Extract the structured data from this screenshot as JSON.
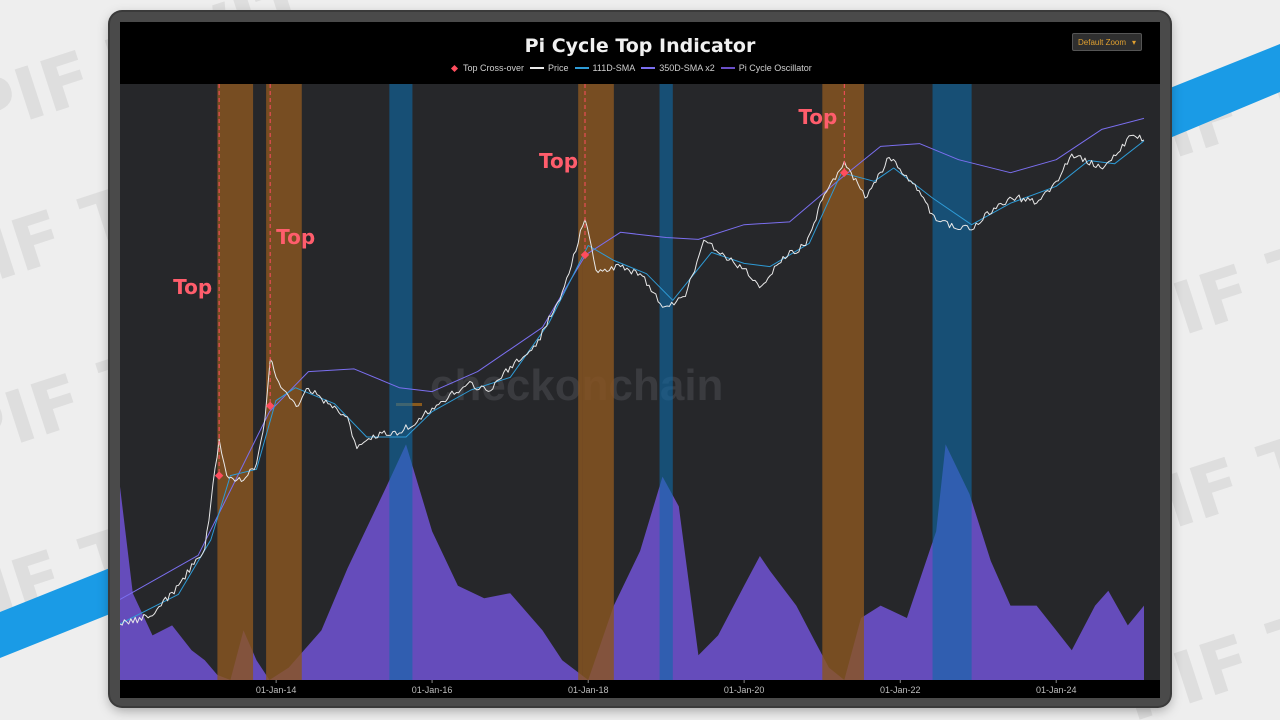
{
  "colors": {
    "accent_blue": "#1a9be6",
    "plot_bg": "#26272a",
    "price": "#e8e8e8",
    "sma111": "#2e9bd6",
    "sma350x2": "#7b6ff0",
    "oscillator": "#6a4fc8",
    "top_band": "#8a5521",
    "bottom_band": "#0d6aa8",
    "crossover": "#ff4d5e",
    "top_label": "#ff5d6c",
    "zoom_text": "#e0a030"
  },
  "watermark": {
    "text": "checkonchain"
  },
  "background_watermark": "PIF TWIT",
  "zoom_button": {
    "label": "Default Zoom",
    "icon": "caret-down-icon"
  },
  "legend": [
    {
      "label": "Top Cross-over",
      "kind": "diamond",
      "color": "#ff4d5e"
    },
    {
      "label": "Price",
      "kind": "line",
      "color": "#e8e8e8"
    },
    {
      "label": "111D-SMA",
      "kind": "line",
      "color": "#2e9bd6"
    },
    {
      "label": "350D-SMA x2",
      "kind": "line",
      "color": "#7b6ff0"
    },
    {
      "label": "Pi Cycle Oscillator",
      "kind": "line",
      "color": "#6a4fc8"
    }
  ],
  "chart_data": {
    "type": "line",
    "title": "Pi Cycle Top Indicator",
    "x_axis": {
      "type": "date",
      "range": [
        "2012-01-01",
        "2025-02-15"
      ],
      "tick_labels": [
        "01-Jan-14",
        "01-Jan-16",
        "01-Jan-18",
        "01-Jan-20",
        "01-Jan-22",
        "01-Jan-24"
      ],
      "ticks": [
        "2014-01-01",
        "2016-01-01",
        "2018-01-01",
        "2020-01-01",
        "2022-01-01",
        "2024-01-01"
      ]
    },
    "y_scale": "log",
    "grid": false,
    "legend_position": "top-center",
    "series": [
      {
        "name": "Price",
        "points": [
          [
            "2012-01-01",
            5.5
          ],
          [
            "2012-06-01",
            6.5
          ],
          [
            "2012-10-01",
            12
          ],
          [
            "2013-02-01",
            25
          ],
          [
            "2013-04-09",
            230
          ],
          [
            "2013-05-15",
            110
          ],
          [
            "2013-08-01",
            100
          ],
          [
            "2013-10-01",
            140
          ],
          [
            "2013-11-10",
            350
          ],
          [
            "2013-12-04",
            1150
          ],
          [
            "2014-01-01",
            800
          ],
          [
            "2014-02-15",
            600
          ],
          [
            "2014-04-15",
            450
          ],
          [
            "2014-06-01",
            640
          ],
          [
            "2014-09-01",
            470
          ],
          [
            "2014-12-01",
            360
          ],
          [
            "2015-01-14",
            190
          ],
          [
            "2015-04-01",
            250
          ],
          [
            "2015-08-01",
            260
          ],
          [
            "2015-11-01",
            350
          ],
          [
            "2016-01-01",
            430
          ],
          [
            "2016-06-15",
            700
          ],
          [
            "2016-10-01",
            610
          ],
          [
            "2017-01-01",
            1000
          ],
          [
            "2017-05-01",
            1500
          ],
          [
            "2017-09-01",
            4500
          ],
          [
            "2017-12-17",
            19500
          ],
          [
            "2018-02-06",
            7000
          ],
          [
            "2018-06-01",
            7500
          ],
          [
            "2018-09-01",
            6500
          ],
          [
            "2018-12-15",
            3300
          ],
          [
            "2019-04-01",
            4100
          ],
          [
            "2019-06-26",
            12800
          ],
          [
            "2019-09-01",
            10000
          ],
          [
            "2020-01-01",
            7200
          ],
          [
            "2020-03-13",
            4900
          ],
          [
            "2020-07-01",
            9200
          ],
          [
            "2020-10-15",
            11500
          ],
          [
            "2021-01-01",
            29000
          ],
          [
            "2021-04-14",
            63000
          ],
          [
            "2021-07-20",
            30000
          ],
          [
            "2021-11-10",
            68000
          ],
          [
            "2022-03-01",
            40000
          ],
          [
            "2022-06-18",
            19000
          ],
          [
            "2022-11-21",
            15800
          ],
          [
            "2023-03-15",
            24500
          ],
          [
            "2023-07-01",
            30500
          ],
          [
            "2023-10-01",
            27000
          ],
          [
            "2024-01-01",
            42000
          ],
          [
            "2024-03-14",
            73000
          ],
          [
            "2024-08-05",
            54000
          ],
          [
            "2024-12-17",
            106000
          ],
          [
            "2025-02-15",
            97000
          ]
        ]
      },
      {
        "name": "111D-SMA",
        "points": [
          [
            "2012-01-01",
            5.5
          ],
          [
            "2012-10-01",
            10
          ],
          [
            "2013-03-01",
            30
          ],
          [
            "2013-06-01",
            110
          ],
          [
            "2013-10-01",
            125
          ],
          [
            "2013-12-31",
            500
          ],
          [
            "2014-04-01",
            650
          ],
          [
            "2014-10-01",
            470
          ],
          [
            "2015-03-01",
            240
          ],
          [
            "2015-09-01",
            240
          ],
          [
            "2016-01-01",
            400
          ],
          [
            "2016-07-01",
            620
          ],
          [
            "2017-01-01",
            800
          ],
          [
            "2017-07-01",
            2400
          ],
          [
            "2018-01-01",
            11500
          ],
          [
            "2018-05-01",
            8500
          ],
          [
            "2018-10-01",
            6500
          ],
          [
            "2019-02-01",
            3800
          ],
          [
            "2019-08-01",
            10000
          ],
          [
            "2020-01-01",
            8000
          ],
          [
            "2020-05-01",
            7500
          ],
          [
            "2020-11-01",
            12000
          ],
          [
            "2021-04-01",
            50000
          ],
          [
            "2021-09-01",
            42000
          ],
          [
            "2021-12-01",
            55000
          ],
          [
            "2022-06-01",
            30000
          ],
          [
            "2022-12-01",
            17500
          ],
          [
            "2023-06-01",
            27000
          ],
          [
            "2024-01-01",
            38000
          ],
          [
            "2024-06-01",
            64000
          ],
          [
            "2024-10-01",
            60000
          ],
          [
            "2025-02-15",
            95000
          ]
        ]
      },
      {
        "name": "350D-SMA x2",
        "points": [
          [
            "2012-01-01",
            9
          ],
          [
            "2013-01-01",
            22
          ],
          [
            "2013-12-01",
            400
          ],
          [
            "2014-06-01",
            900
          ],
          [
            "2015-01-01",
            950
          ],
          [
            "2015-08-01",
            650
          ],
          [
            "2016-01-01",
            600
          ],
          [
            "2016-08-01",
            900
          ],
          [
            "2017-06-01",
            2200
          ],
          [
            "2017-12-20",
            9500
          ],
          [
            "2018-06-01",
            15000
          ],
          [
            "2019-01-01",
            13500
          ],
          [
            "2019-06-01",
            13000
          ],
          [
            "2020-01-01",
            17500
          ],
          [
            "2020-08-01",
            18500
          ],
          [
            "2021-04-01",
            45000
          ],
          [
            "2021-10-01",
            85000
          ],
          [
            "2022-04-01",
            90000
          ],
          [
            "2022-10-01",
            65000
          ],
          [
            "2023-06-01",
            50000
          ],
          [
            "2024-01-01",
            65000
          ],
          [
            "2024-08-01",
            120000
          ],
          [
            "2025-02-15",
            150000
          ]
        ]
      },
      {
        "name": "Pi Cycle Oscillator",
        "scale": "0 (base) to 1 (peak of lower panel)",
        "points": [
          [
            "2012-01-01",
            0.78
          ],
          [
            "2012-03-01",
            0.35
          ],
          [
            "2012-06-01",
            0.18
          ],
          [
            "2012-09-01",
            0.22
          ],
          [
            "2012-12-01",
            0.12
          ],
          [
            "2013-02-01",
            0.08
          ],
          [
            "2013-04-01",
            0.02
          ],
          [
            "2013-06-01",
            0.0
          ],
          [
            "2013-08-01",
            0.2
          ],
          [
            "2013-10-01",
            0.08
          ],
          [
            "2013-12-01",
            0.0
          ],
          [
            "2014-03-01",
            0.05
          ],
          [
            "2014-08-01",
            0.2
          ],
          [
            "2014-12-01",
            0.45
          ],
          [
            "2015-06-01",
            0.78
          ],
          [
            "2015-09-01",
            0.95
          ],
          [
            "2016-01-01",
            0.6
          ],
          [
            "2016-05-01",
            0.38
          ],
          [
            "2016-09-01",
            0.33
          ],
          [
            "2017-01-01",
            0.35
          ],
          [
            "2017-06-01",
            0.2
          ],
          [
            "2017-09-01",
            0.08
          ],
          [
            "2018-01-01",
            0.0
          ],
          [
            "2018-05-01",
            0.3
          ],
          [
            "2018-09-01",
            0.52
          ],
          [
            "2018-12-15",
            0.82
          ],
          [
            "2019-03-01",
            0.7
          ],
          [
            "2019-06-01",
            0.1
          ],
          [
            "2019-09-01",
            0.18
          ],
          [
            "2020-01-01",
            0.38
          ],
          [
            "2020-03-15",
            0.5
          ],
          [
            "2020-05-01",
            0.44
          ],
          [
            "2020-09-01",
            0.3
          ],
          [
            "2020-12-01",
            0.15
          ],
          [
            "2021-02-01",
            0.05
          ],
          [
            "2021-04-14",
            0.0
          ],
          [
            "2021-07-01",
            0.25
          ],
          [
            "2021-10-01",
            0.3
          ],
          [
            "2022-02-01",
            0.25
          ],
          [
            "2022-06-18",
            0.6
          ],
          [
            "2022-08-01",
            0.95
          ],
          [
            "2022-11-21",
            0.75
          ],
          [
            "2023-03-01",
            0.48
          ],
          [
            "2023-06-01",
            0.3
          ],
          [
            "2023-10-01",
            0.3
          ],
          [
            "2024-01-01",
            0.2
          ],
          [
            "2024-03-14",
            0.12
          ],
          [
            "2024-07-01",
            0.3
          ],
          [
            "2024-09-01",
            0.36
          ],
          [
            "2024-12-01",
            0.22
          ],
          [
            "2025-02-15",
            0.3
          ]
        ]
      }
    ],
    "top_crossovers": [
      {
        "date": "2013-04-09",
        "price": 110,
        "label": "Top"
      },
      {
        "date": "2013-12-04",
        "price": 450,
        "label": "Top"
      },
      {
        "date": "2017-12-17",
        "price": 9500,
        "label": "Top"
      },
      {
        "date": "2021-04-14",
        "price": 50000,
        "label": "Top"
      }
    ],
    "top_zones": [
      [
        "2013-04-01",
        "2013-09-15"
      ],
      [
        "2013-11-15",
        "2014-05-01"
      ],
      [
        "2017-11-15",
        "2017-12-05"
      ],
      [
        "2017-12-05",
        "2018-05-01"
      ],
      [
        "2021-01-01",
        "2021-07-15"
      ]
    ],
    "bottom_zones": [
      [
        "2015-06-15",
        "2015-10-01"
      ],
      [
        "2018-12-01",
        "2019-02-01"
      ],
      [
        "2022-06-01",
        "2022-12-01"
      ]
    ]
  }
}
